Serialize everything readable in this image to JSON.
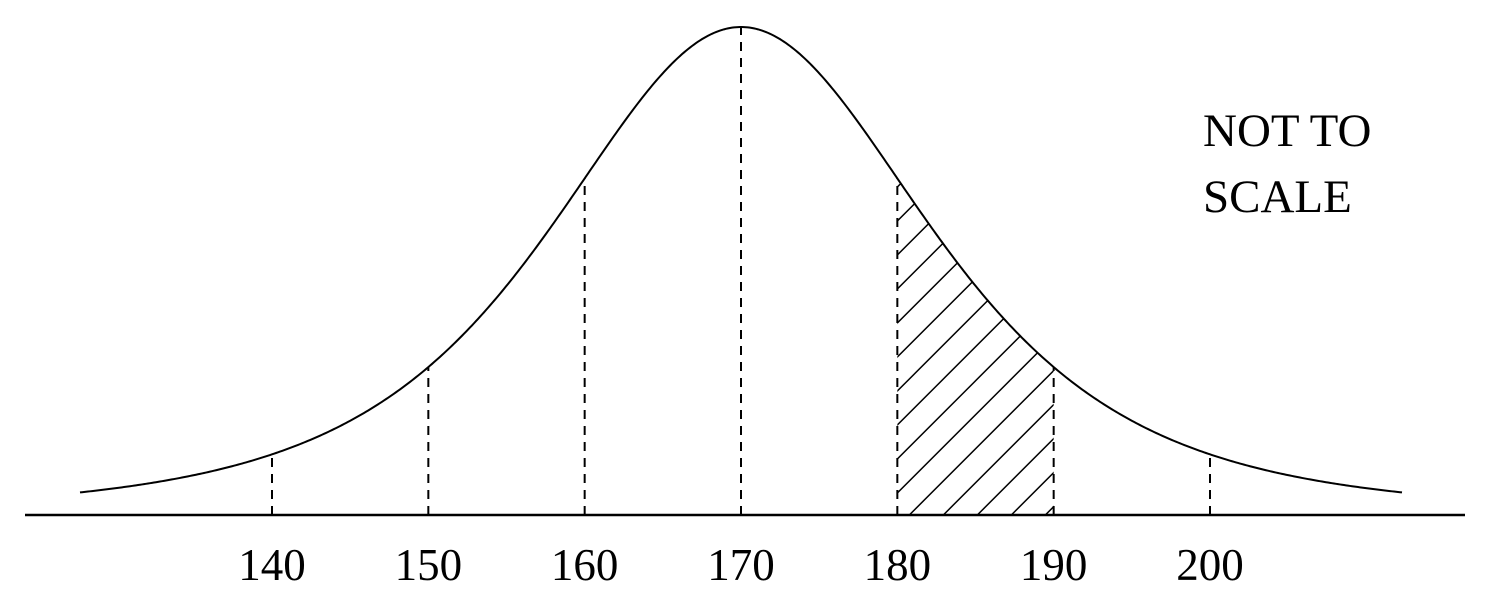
{
  "note": {
    "lines": [
      "NOT TO",
      "SCALE"
    ]
  },
  "axis": {
    "ticks": [
      140,
      150,
      160,
      170,
      180,
      190,
      200
    ]
  }
}
